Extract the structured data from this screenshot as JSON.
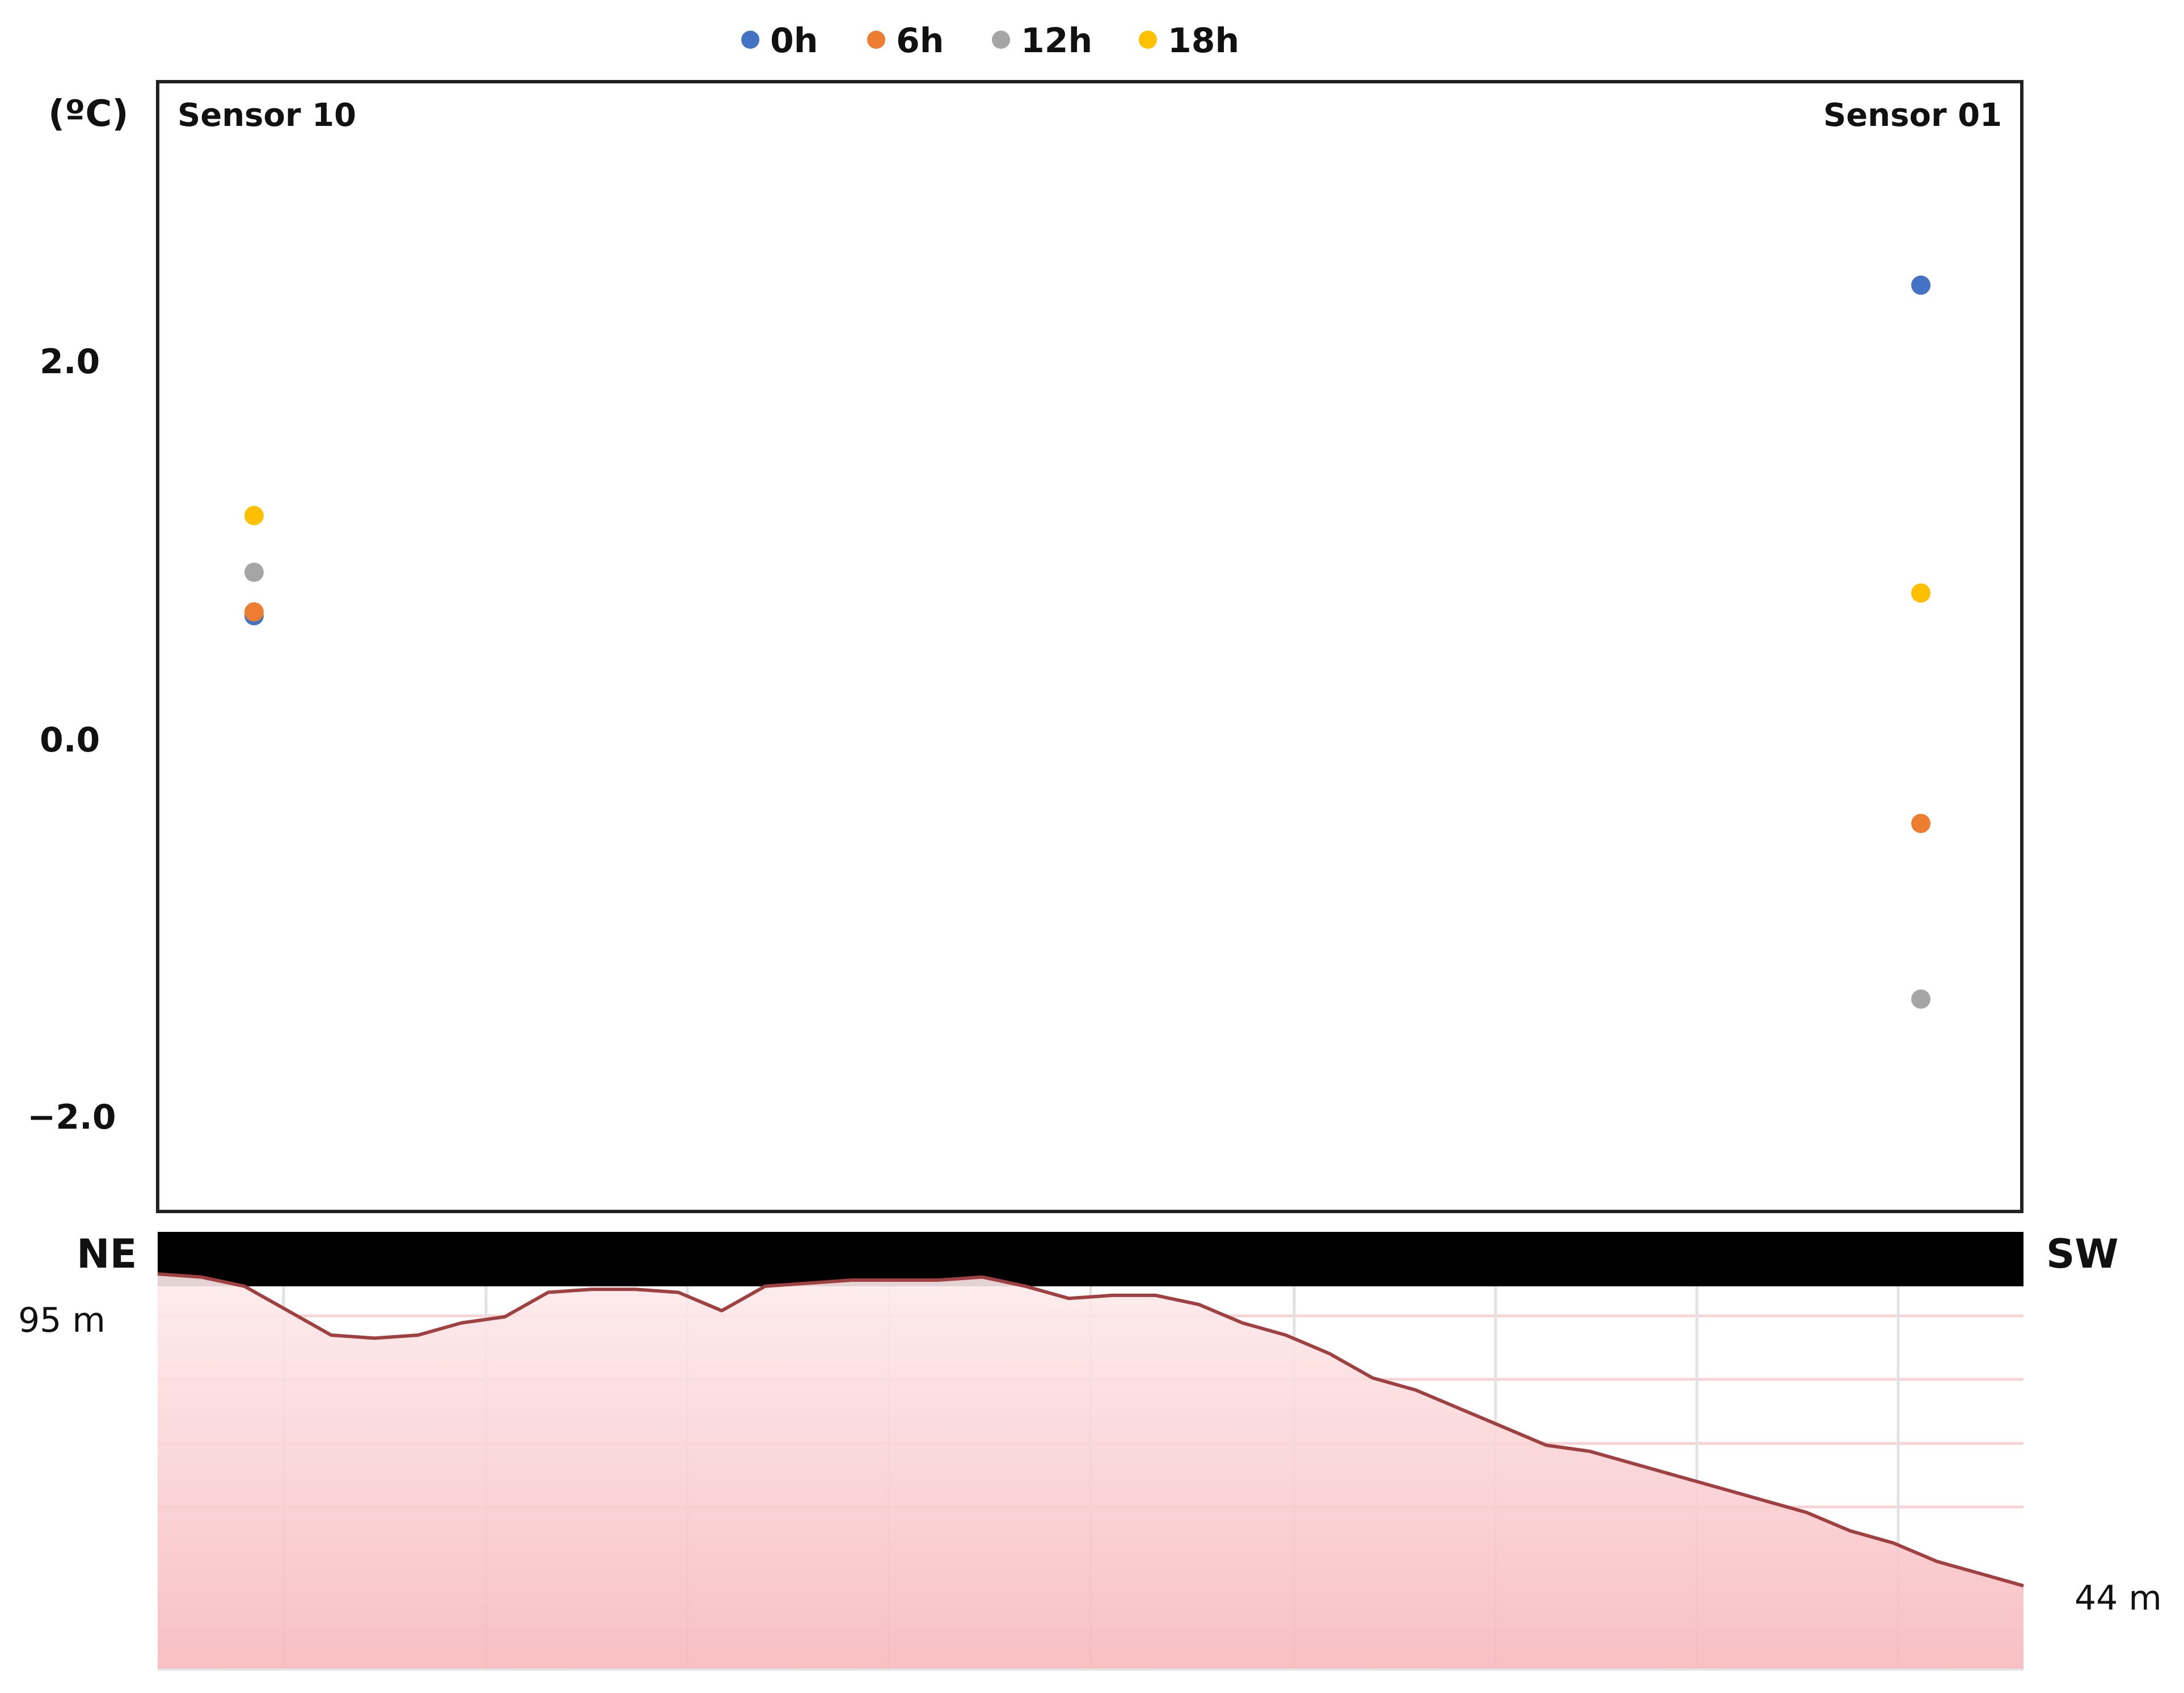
{
  "chart_data": [
    {
      "type": "scatter",
      "ylabel": "(ºC)",
      "categories": [
        "Sensor 10",
        "Sensor 01"
      ],
      "yticks": [
        "2.0",
        "0.0",
        "−2.0"
      ],
      "ylim": [
        -2.5,
        3.5
      ],
      "legend_position": "top",
      "grid": false,
      "series": [
        {
          "name": "0h",
          "color": "#4472C4",
          "values": [
            0.65,
            2.4
          ]
        },
        {
          "name": "6h",
          "color": "#ED7D31",
          "values": [
            0.67,
            -0.45
          ]
        },
        {
          "name": "12h",
          "color": "#A5A5A5",
          "values": [
            0.88,
            -1.38
          ]
        },
        {
          "name": "18h",
          "color": "#FFC000",
          "values": [
            1.18,
            0.77
          ]
        }
      ]
    },
    {
      "type": "area",
      "left_label": "NE",
      "right_label": "SW",
      "start_label": "95 m",
      "end_label": "44 m",
      "line_color": "#A04040",
      "fill_color": "#F7B9BD",
      "grid": true,
      "ylim": [
        30,
        100
      ],
      "values": [
        95,
        94.5,
        93,
        89,
        85,
        84.5,
        85,
        87,
        88,
        92,
        92.5,
        92.5,
        92,
        89,
        93,
        93.5,
        94,
        94,
        94,
        94.5,
        93,
        91,
        91.5,
        91.5,
        90,
        87,
        85,
        82,
        78,
        76,
        73,
        70,
        67,
        66,
        64,
        62,
        60,
        58,
        56,
        53,
        51,
        48,
        46,
        44
      ]
    }
  ]
}
